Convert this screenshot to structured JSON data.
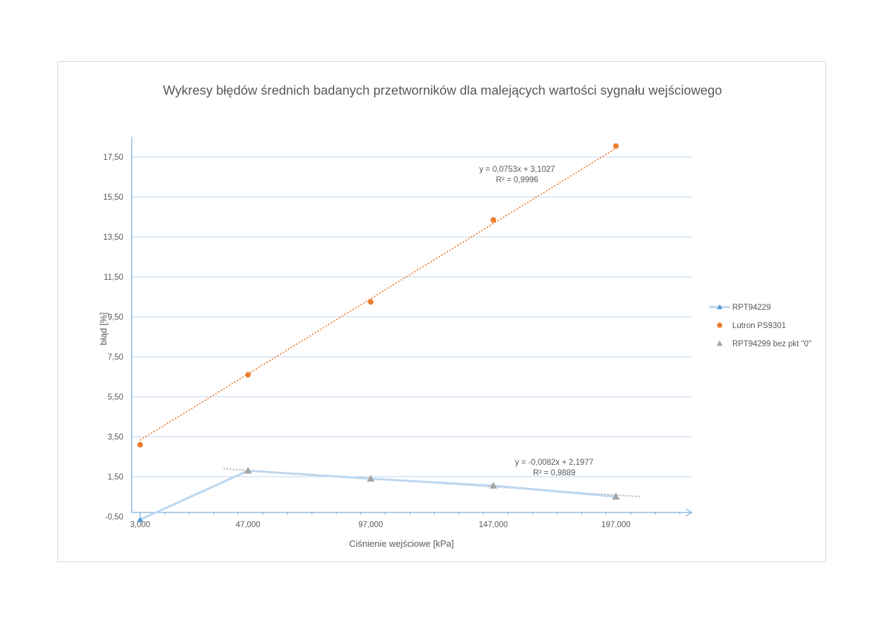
{
  "chart_data": {
    "type": "scatter",
    "title": "Wykresy błędów średnich badanych przetworników dla malejących wartości sygnału wejściowego",
    "xlabel": "Ciśnienie wejściowe [kPa]",
    "ylabel": "błąd [%]",
    "xlim": [
      3.0,
      233.0
    ],
    "ylim": [
      -0.5,
      19.0
    ],
    "x_ticks": [
      3.0,
      47.0,
      97.0,
      147.0,
      197.0
    ],
    "x_tick_labels": [
      "3,000",
      "47,000",
      "97,000",
      "147,000",
      "197,000"
    ],
    "y_ticks": [
      -0.5,
      1.5,
      3.5,
      5.5,
      7.5,
      9.5,
      11.5,
      13.5,
      15.5,
      17.5
    ],
    "y_tick_labels": [
      "-0,50",
      "1,50",
      "3,50",
      "5,50",
      "7,50",
      "9,50",
      "11,50",
      "13,50",
      "15,50",
      "17,50"
    ],
    "grid": "horizontal",
    "legend_position": "right",
    "series": [
      {
        "name": "RPT94229",
        "style": "line-triangle",
        "color": "#5b9bd5",
        "line_color": "#bdd7ee",
        "x": [
          3.0,
          47.0,
          97.0,
          147.0,
          197.0
        ],
        "y": [
          -0.65,
          1.8,
          1.4,
          1.05,
          0.5
        ]
      },
      {
        "name": "Lutron PS9301",
        "style": "circle",
        "color": "#ed7d31",
        "x": [
          3.0,
          47.0,
          97.0,
          147.0,
          197.0
        ],
        "y": [
          3.1,
          6.6,
          10.25,
          14.35,
          18.05
        ]
      },
      {
        "name": "RPT94299 bez pkt \"0\"",
        "style": "triangle",
        "color": "#a5a5a5",
        "x": [
          47.0,
          97.0,
          147.0,
          197.0
        ],
        "y": [
          1.8,
          1.4,
          1.05,
          0.5
        ]
      }
    ],
    "trendlines": [
      {
        "series": "Lutron PS9301",
        "color": "#ed7d31",
        "slope": 0.0753,
        "intercept": 3.1027,
        "x_range": [
          3.0,
          197.0
        ],
        "equation": "y = 0,0753x + 3,1027",
        "r2": "R² = 0,9996"
      },
      {
        "series": "RPT94299 bez pkt \"0\"",
        "color": "#a5a5a5",
        "slope": -0.0082,
        "intercept": 2.1977,
        "x_range": [
          37.0,
          207.0
        ],
        "equation": "y = -0,0082x + 2,1977",
        "r2": "R² = 0,9889"
      }
    ]
  }
}
